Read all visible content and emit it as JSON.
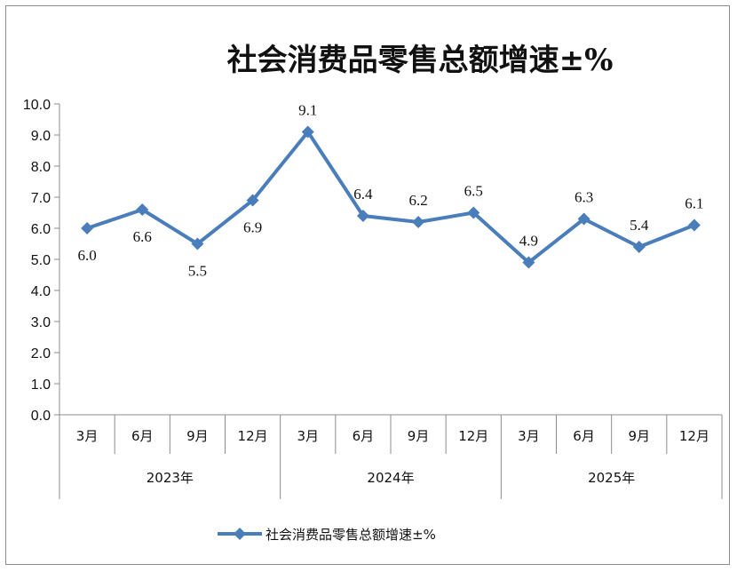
{
  "chart_data": {
    "type": "line",
    "title": "社会消费品零售总额增速±%",
    "categories": [
      "3月",
      "6月",
      "9月",
      "12月",
      "3月",
      "6月",
      "9月",
      "12月",
      "3月",
      "6月",
      "9月",
      "12月"
    ],
    "groups": [
      {
        "label": "2023年",
        "span": 4
      },
      {
        "label": "2024年",
        "span": 4
      },
      {
        "label": "2025年",
        "span": 4
      }
    ],
    "series": [
      {
        "name": "社会消费品零售总额增速±%",
        "values": [
          6.0,
          6.6,
          5.5,
          6.9,
          9.1,
          6.4,
          6.2,
          6.5,
          4.9,
          6.3,
          5.4,
          6.1
        ],
        "data_labels": [
          "6.0",
          "6.6",
          "5.5",
          "6.9",
          "9.1",
          "6.4",
          "6.2",
          "6.5",
          "4.9",
          "6.3",
          "5.4",
          "6.1"
        ],
        "color": "#4a7ebb",
        "marker": "diamond"
      }
    ],
    "ylim": [
      0,
      10
    ],
    "yticks": [
      "0.0",
      "1.0",
      "2.0",
      "3.0",
      "4.0",
      "5.0",
      "6.0",
      "7.0",
      "8.0",
      "9.0",
      "10.0"
    ],
    "grid": false,
    "legend": "bottom"
  }
}
